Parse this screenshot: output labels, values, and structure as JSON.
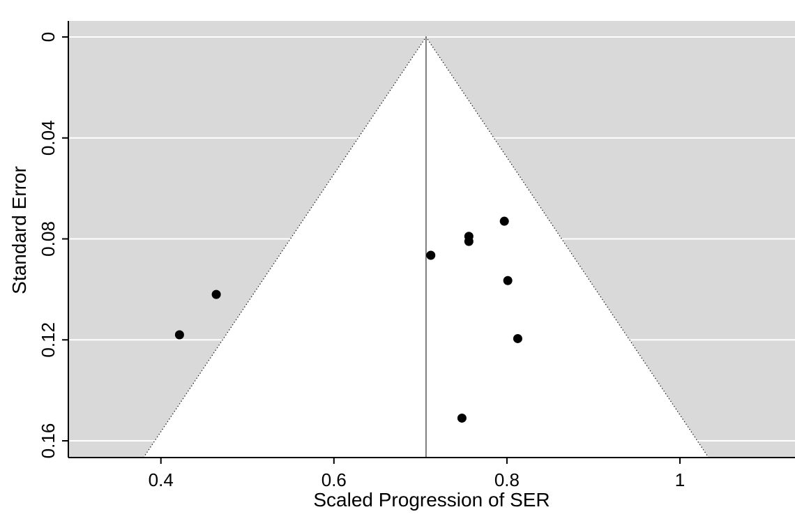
{
  "chart_data": {
    "type": "scatter",
    "variant": "meta-analysis-funnel-plot",
    "title": "",
    "xlabel": "Scaled Progression of SER",
    "ylabel": "Standard Error",
    "x_ticks": [
      "0.4",
      "0.6",
      "0.8",
      "1"
    ],
    "x_tick_values": [
      0.4,
      0.6,
      0.8,
      1.0
    ],
    "y_ticks": [
      "0",
      "0.04",
      "0.08",
      "0.12",
      "0.16"
    ],
    "y_tick_values": [
      0,
      0.04,
      0.08,
      0.12,
      0.16
    ],
    "xlim": [
      0.293,
      1.133
    ],
    "ylim": [
      0,
      0.167
    ],
    "y_axis_inverted": true,
    "grid": true,
    "legend": "none",
    "center_estimate": 0.7065,
    "ci_multiplier": 1.96,
    "colors": {
      "shade_fill": "#d9d9d9",
      "funnel_fill": "#ffffff",
      "grid_line": "#ffffff",
      "funnel_border": "#000000",
      "center_line": "#3a3a3a",
      "axis": "#000000",
      "point": "#000000"
    },
    "points": [
      {
        "x": 0.797,
        "se": 0.073
      },
      {
        "x": 0.756,
        "se": 0.079
      },
      {
        "x": 0.756,
        "se": 0.081
      },
      {
        "x": 0.712,
        "se": 0.0865
      },
      {
        "x": 0.801,
        "se": 0.0965
      },
      {
        "x": 0.464,
        "se": 0.102
      },
      {
        "x": 0.4215,
        "se": 0.118
      },
      {
        "x": 0.8125,
        "se": 0.1195
      },
      {
        "x": 0.748,
        "se": 0.151
      }
    ]
  }
}
